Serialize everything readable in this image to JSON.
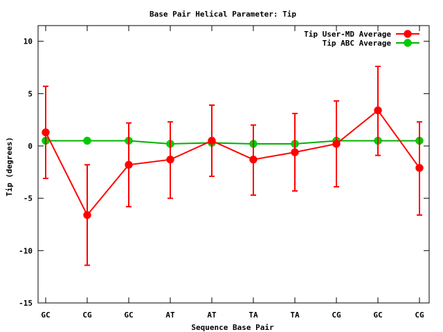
{
  "chart_data": {
    "type": "line",
    "title": "Base Pair Helical Parameter: Tip",
    "xlabel": "Sequence Base Pair",
    "ylabel": "Tip (degrees)",
    "categories": [
      "GC",
      "CG",
      "GC",
      "AT",
      "AT",
      "TA",
      "TA",
      "CG",
      "GC",
      "CG"
    ],
    "ylim": [
      -15,
      11.5
    ],
    "yticks": [
      -15,
      -10,
      -5,
      0,
      5,
      10
    ],
    "ytick_labels": [
      "-15",
      "-10",
      "-5",
      "0",
      "5",
      "10"
    ],
    "grid": false,
    "legend_position": "top-right",
    "series": [
      {
        "name": "Tip User-MD Average",
        "color": "#ff0000",
        "marker_color": "#ff0000",
        "values": [
          1.3,
          -6.6,
          -1.8,
          -1.3,
          0.5,
          -1.3,
          -0.6,
          0.2,
          3.4,
          -2.1
        ],
        "err_low": [
          -3.1,
          -11.4,
          -5.8,
          -5.0,
          -2.9,
          -4.7,
          -4.3,
          -3.9,
          -0.9,
          -6.6
        ],
        "err_high": [
          5.7,
          -1.8,
          2.2,
          2.3,
          3.9,
          2.0,
          3.1,
          4.3,
          7.6,
          2.3
        ]
      },
      {
        "name": "Tip ABC Average",
        "color": "#00b000",
        "marker_color": "#00cc00",
        "values": [
          0.5,
          0.5,
          0.5,
          0.2,
          0.3,
          0.2,
          0.2,
          0.5,
          0.5,
          0.5
        ]
      }
    ]
  }
}
